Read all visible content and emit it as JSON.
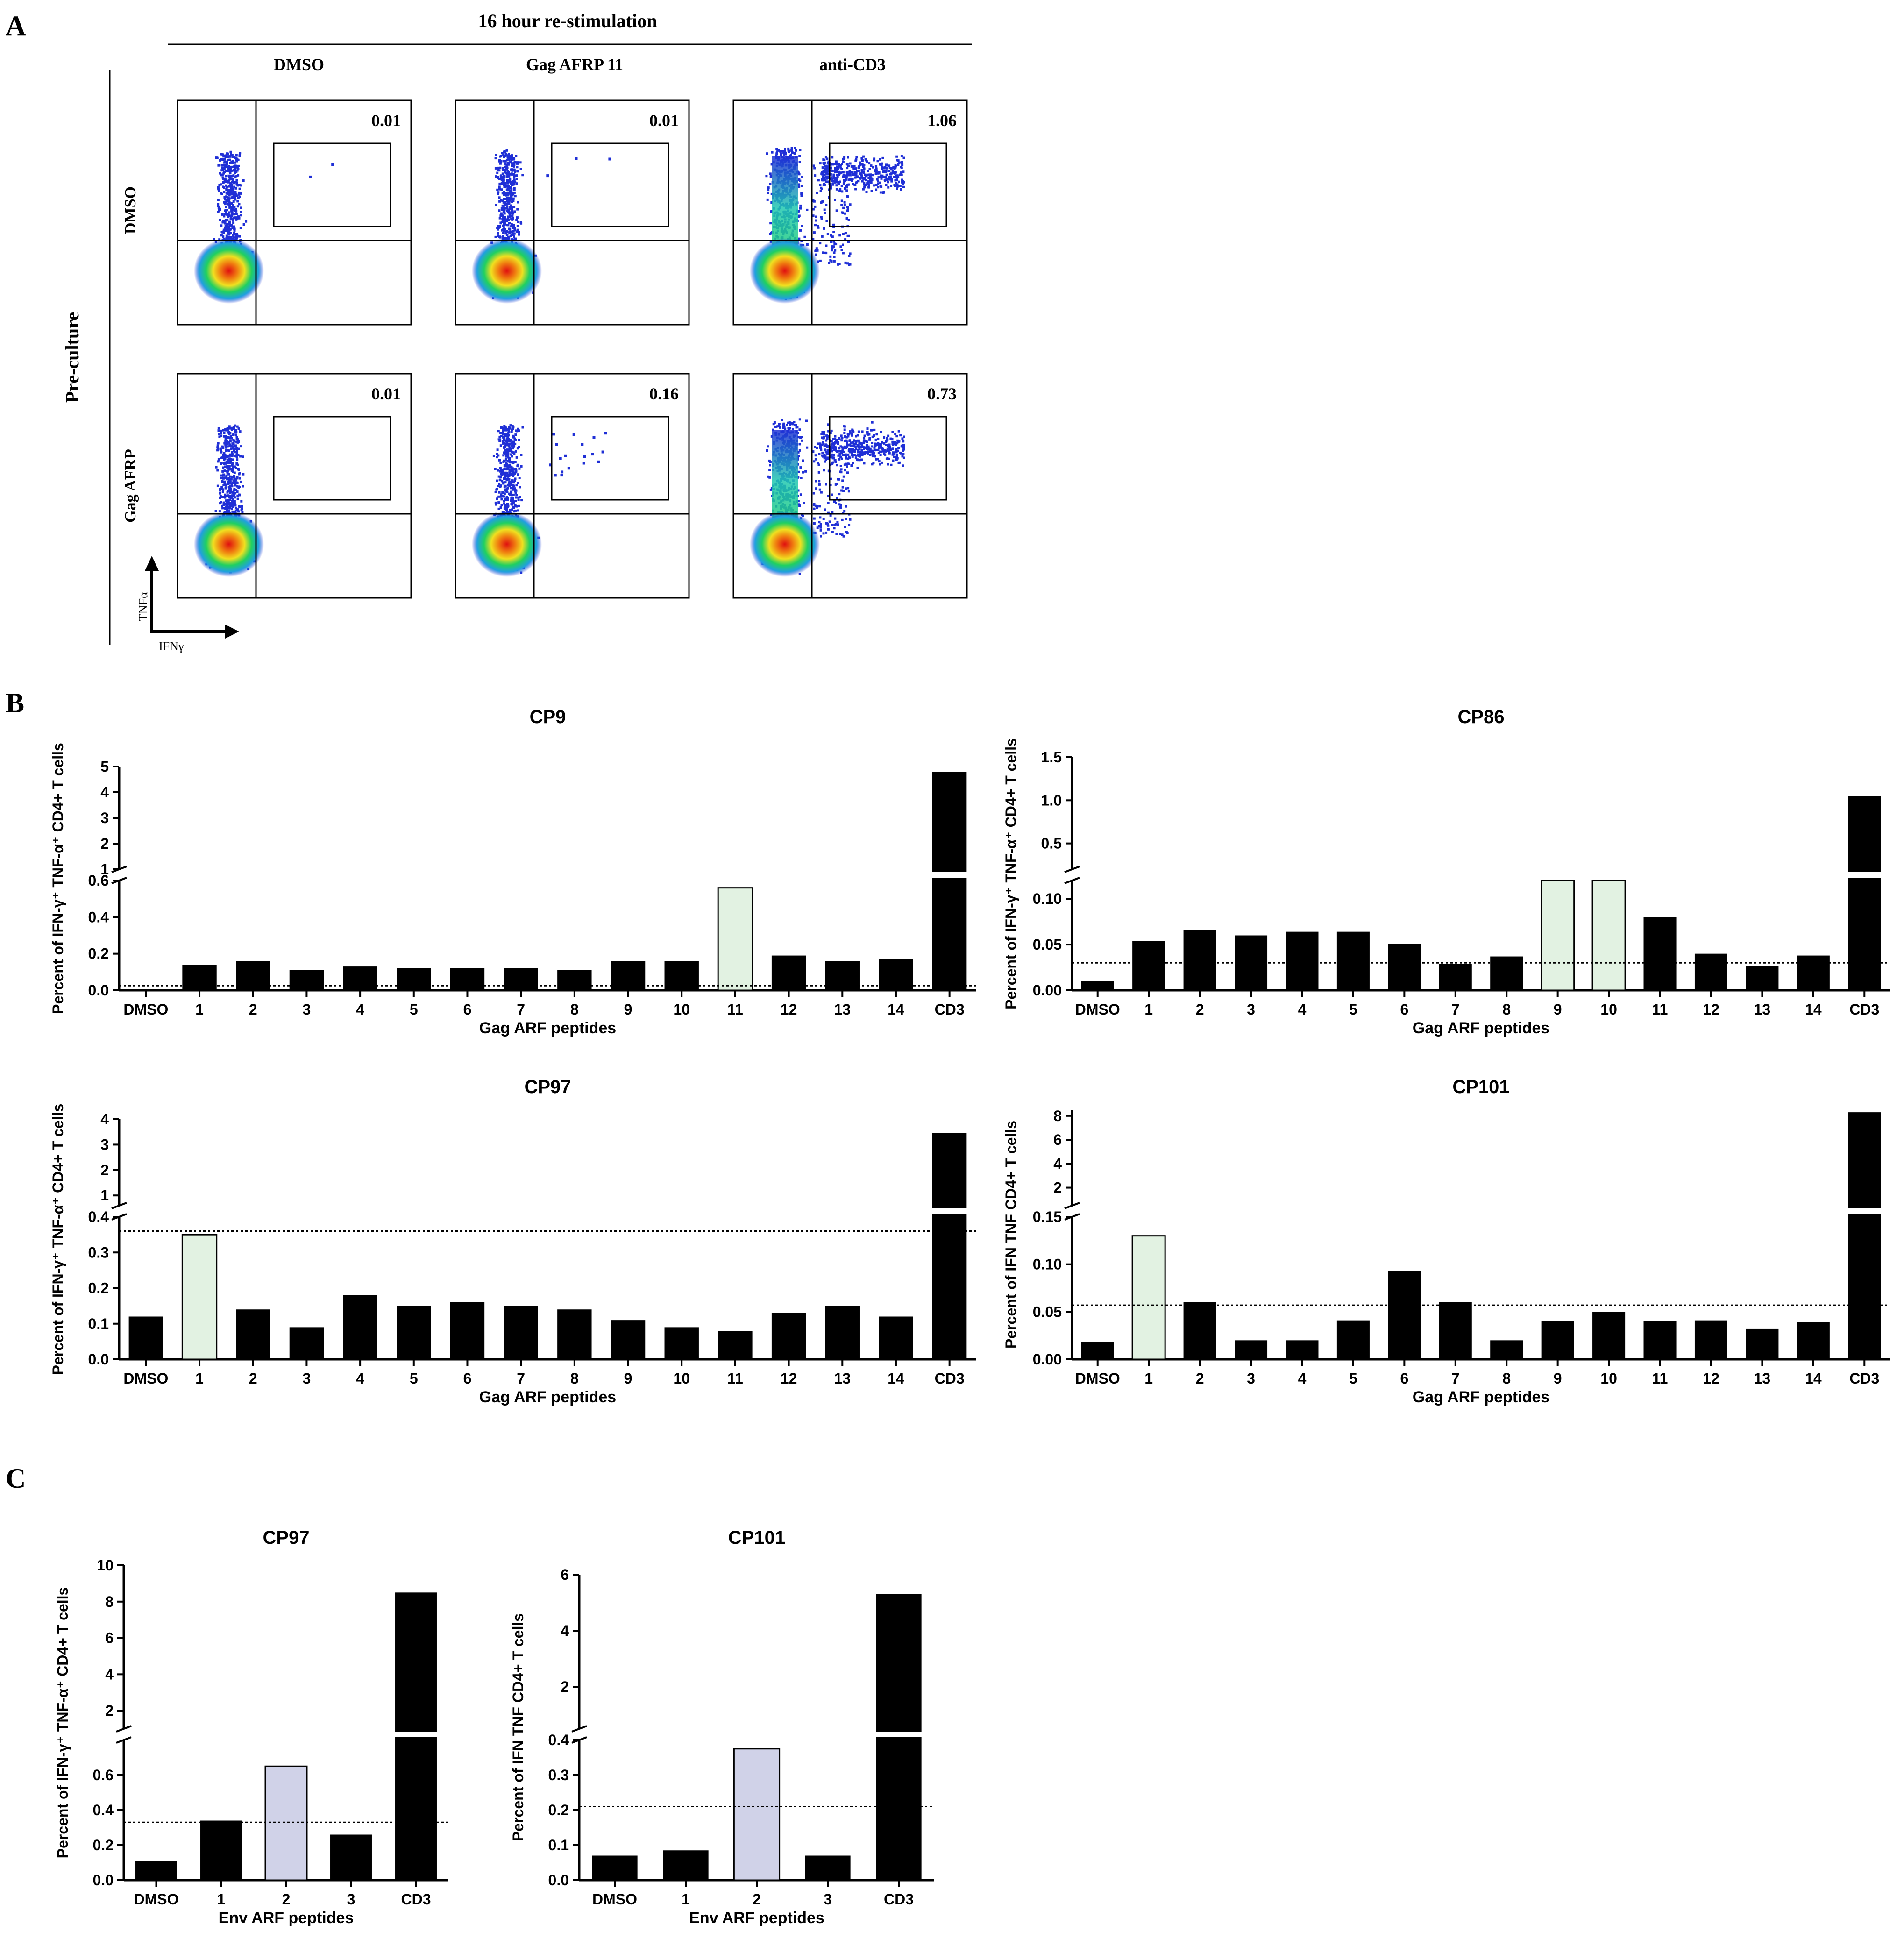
{
  "panel_labels": {
    "A": "A",
    "B": "B",
    "C": "C"
  },
  "flow": {
    "header": "16 hour re-stimulation",
    "col_labels": [
      "DMSO",
      "Gag AFRP 11",
      "anti-CD3"
    ],
    "row_group_label": "Pre-culture",
    "row_labels": [
      "DMSO",
      "Gag AFRP"
    ],
    "y_axis_label": "TNFα",
    "x_axis_label": "IFNγ",
    "gate_values": [
      [
        "0.01",
        "0.01",
        "1.06"
      ],
      [
        "0.01",
        "0.16",
        "0.73"
      ]
    ],
    "colors": {
      "dots": "#1f2fd6",
      "core_hot": "#e01010",
      "mid": "#f0e020",
      "green": "#20d060"
    }
  },
  "colors": {
    "black": "#000000",
    "green_highlight": "#e2f2e2",
    "lavender_highlight": "#d0d2e8"
  },
  "chart_data": [
    {
      "panel": "B",
      "type": "bar",
      "title": "CP9",
      "xlabel": "Gag ARF peptides",
      "ylabel": "Percent of IFN-γ⁺ TNF-α⁺ CD4+ T cells",
      "categories": [
        "DMSO",
        "1",
        "2",
        "3",
        "4",
        "5",
        "6",
        "7",
        "8",
        "9",
        "10",
        "11",
        "12",
        "13",
        "14",
        "CD3"
      ],
      "values": [
        0,
        0.14,
        0.16,
        0.11,
        0.13,
        0.12,
        0.12,
        0.12,
        0.11,
        0.16,
        0.16,
        0.56,
        0.19,
        0.16,
        0.17,
        4.8
      ],
      "highlighted": [
        "11"
      ],
      "broken_y_axis": {
        "lower": [
          0,
          0.6
        ],
        "upper": [
          1,
          5
        ]
      },
      "yticks_lower": [
        "0.0",
        "0.2",
        "0.4",
        "0.6"
      ],
      "yticks_upper": [
        "1",
        "2",
        "3",
        "4",
        "5"
      ],
      "threshold": 0.025
    },
    {
      "panel": "B",
      "type": "bar",
      "title": "CP86",
      "xlabel": "Gag ARF peptides",
      "ylabel": "Percent of IFN-γ⁺ TNF-α⁺ CD4+ T cells",
      "categories": [
        "DMSO",
        "1",
        "2",
        "3",
        "4",
        "5",
        "6",
        "7",
        "8",
        "9",
        "10",
        "11",
        "12",
        "13",
        "14",
        "CD3"
      ],
      "values": [
        0.01,
        0.054,
        0.066,
        0.06,
        0.064,
        0.064,
        0.051,
        0.029,
        0.037,
        0.12,
        0.12,
        0.08,
        0.04,
        0.027,
        0.038,
        1.05
      ],
      "highlighted": [
        "9",
        "10"
      ],
      "broken_y_axis": {
        "lower": [
          0,
          0.12
        ],
        "upper": [
          0.2,
          1.5
        ]
      },
      "yticks_lower": [
        "0.00",
        "0.05",
        "0.10"
      ],
      "yticks_upper": [
        "0.5",
        "1.0",
        "1.5"
      ],
      "threshold": 0.03
    },
    {
      "panel": "B",
      "type": "bar",
      "title": "CP97",
      "xlabel": "Gag ARF peptides",
      "ylabel": "Percent of IFN-γ⁺ TNF-α⁺ CD4+ T cells",
      "categories": [
        "DMSO",
        "1",
        "2",
        "3",
        "4",
        "5",
        "6",
        "7",
        "8",
        "9",
        "10",
        "11",
        "12",
        "13",
        "14",
        "CD3"
      ],
      "values": [
        0.12,
        0.35,
        0.14,
        0.09,
        0.18,
        0.15,
        0.16,
        0.15,
        0.14,
        0.11,
        0.09,
        0.08,
        0.13,
        0.15,
        0.12,
        3.45
      ],
      "highlighted": [
        "1"
      ],
      "broken_y_axis": {
        "lower": [
          0,
          0.4
        ],
        "upper": [
          0.6,
          4
        ]
      },
      "yticks_lower": [
        "0.0",
        "0.1",
        "0.2",
        "0.3",
        "0.4"
      ],
      "yticks_upper": [
        "1",
        "2",
        "3",
        "4"
      ],
      "threshold": 0.36
    },
    {
      "panel": "B",
      "type": "bar",
      "title": "CP101",
      "xlabel": "Gag ARF peptides",
      "ylabel": "Percent of IFN TNF CD4+ T cells",
      "categories": [
        "DMSO",
        "1",
        "2",
        "3",
        "4",
        "5",
        "6",
        "7",
        "8",
        "9",
        "10",
        "11",
        "12",
        "13",
        "14",
        "CD3"
      ],
      "values": [
        0.018,
        0.13,
        0.06,
        0.02,
        0.02,
        0.041,
        0.093,
        0.06,
        0.02,
        0.04,
        0.05,
        0.04,
        0.041,
        0.032,
        0.039,
        8.3
      ],
      "highlighted": [
        "1"
      ],
      "broken_y_axis": {
        "lower": [
          0,
          0.15
        ],
        "upper": [
          0.5,
          8.5
        ]
      },
      "yticks_lower": [
        "0.00",
        "0.05",
        "0.10",
        "0.15"
      ],
      "yticks_upper": [
        "2",
        "4",
        "6",
        "8"
      ],
      "threshold": 0.057
    },
    {
      "panel": "C",
      "type": "bar",
      "title": "CP97",
      "xlabel": "Env ARF peptides",
      "ylabel": "Percent of IFN-γ⁺ TNF-α⁺ CD4+ T cells",
      "categories": [
        "DMSO",
        "1",
        "2",
        "3",
        "CD3"
      ],
      "values": [
        0.11,
        0.34,
        0.65,
        0.26,
        8.5
      ],
      "highlighted": [
        "2"
      ],
      "broken_y_axis": {
        "lower": [
          0,
          0.8
        ],
        "upper": [
          1,
          10
        ]
      },
      "yticks_lower": [
        "0.0",
        "0.2",
        "0.4",
        "0.6"
      ],
      "yticks_upper": [
        "2",
        "4",
        "6",
        "8",
        "10"
      ],
      "threshold": 0.33
    },
    {
      "panel": "C",
      "type": "bar",
      "title": "CP101",
      "xlabel": "Env ARF peptides",
      "ylabel": "Percent of IFN TNF CD4+ T cells",
      "categories": [
        "DMSO",
        "1",
        "2",
        "3",
        "CD3"
      ],
      "values": [
        0.07,
        0.085,
        0.375,
        0.07,
        5.3
      ],
      "highlighted": [
        "2"
      ],
      "broken_y_axis": {
        "lower": [
          0,
          0.4
        ],
        "upper": [
          0.5,
          6
        ]
      },
      "yticks_lower": [
        "0.0",
        "0.1",
        "0.2",
        "0.3",
        "0.4"
      ],
      "yticks_upper": [
        "2",
        "4",
        "6"
      ],
      "threshold": 0.21
    }
  ]
}
